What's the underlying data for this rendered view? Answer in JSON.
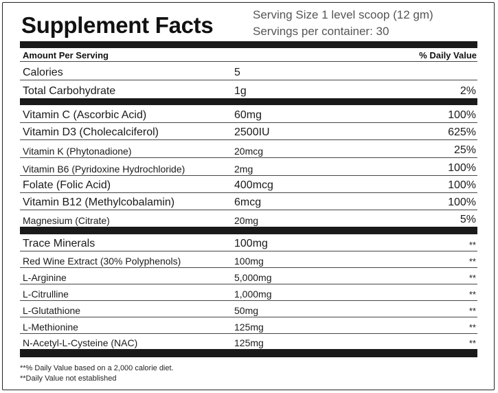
{
  "title": "Supplement Facts",
  "serving_size": "Serving Size 1 level scoop (12 gm)",
  "servings_per_container": "Servings per container: 30",
  "header": {
    "amount_per_serving": "Amount Per Serving",
    "daily_value": "% Daily Value"
  },
  "rows": [
    {
      "name": "Calories",
      "amount": "5",
      "dv": ""
    },
    {
      "name": "Total Carbohydrate",
      "amount": "1g",
      "dv": "2%"
    },
    {
      "name": "Vitamin C (Ascorbic Acid)",
      "amount": "60mg",
      "dv": "100%"
    },
    {
      "name": "Vitamin D3 (Cholecalciferol)",
      "amount": "2500IU",
      "dv": "625%"
    },
    {
      "name": "Vitamin K (Phytonadione)",
      "amount": "20mcg",
      "dv": "25%"
    },
    {
      "name": "Vitamin B6 (Pyridoxine Hydrochloride)",
      "amount": "2mg",
      "dv": "100%"
    },
    {
      "name": "Folate (Folic Acid)",
      "amount": "400mcg",
      "dv": "100%"
    },
    {
      "name": "Vitamin B12 (Methylcobalamin)",
      "amount": "6mcg",
      "dv": "100%"
    },
    {
      "name": "Magnesium (Citrate)",
      "amount": "20mg",
      "dv": "5%"
    },
    {
      "name": "Trace Minerals",
      "amount": "100mg",
      "dv": "**"
    },
    {
      "name": "Red Wine Extract (30% Polyphenols)",
      "amount": "100mg",
      "dv": "**"
    },
    {
      "name": "L-Arginine",
      "amount": "5,000mg",
      "dv": "**"
    },
    {
      "name": "L-Citrulline",
      "amount": "1,000mg",
      "dv": "**"
    },
    {
      "name": "L-Glutathione",
      "amount": "50mg",
      "dv": "**"
    },
    {
      "name": "L-Methionine",
      "amount": "125mg",
      "dv": "**"
    },
    {
      "name": "N-Acetyl-L-Cysteine (NAC)",
      "amount": "125mg",
      "dv": "**"
    }
  ],
  "footnotes": [
    "**% Daily Value based on a 2,000 calorie diet.",
    "**Daily Value not established"
  ]
}
